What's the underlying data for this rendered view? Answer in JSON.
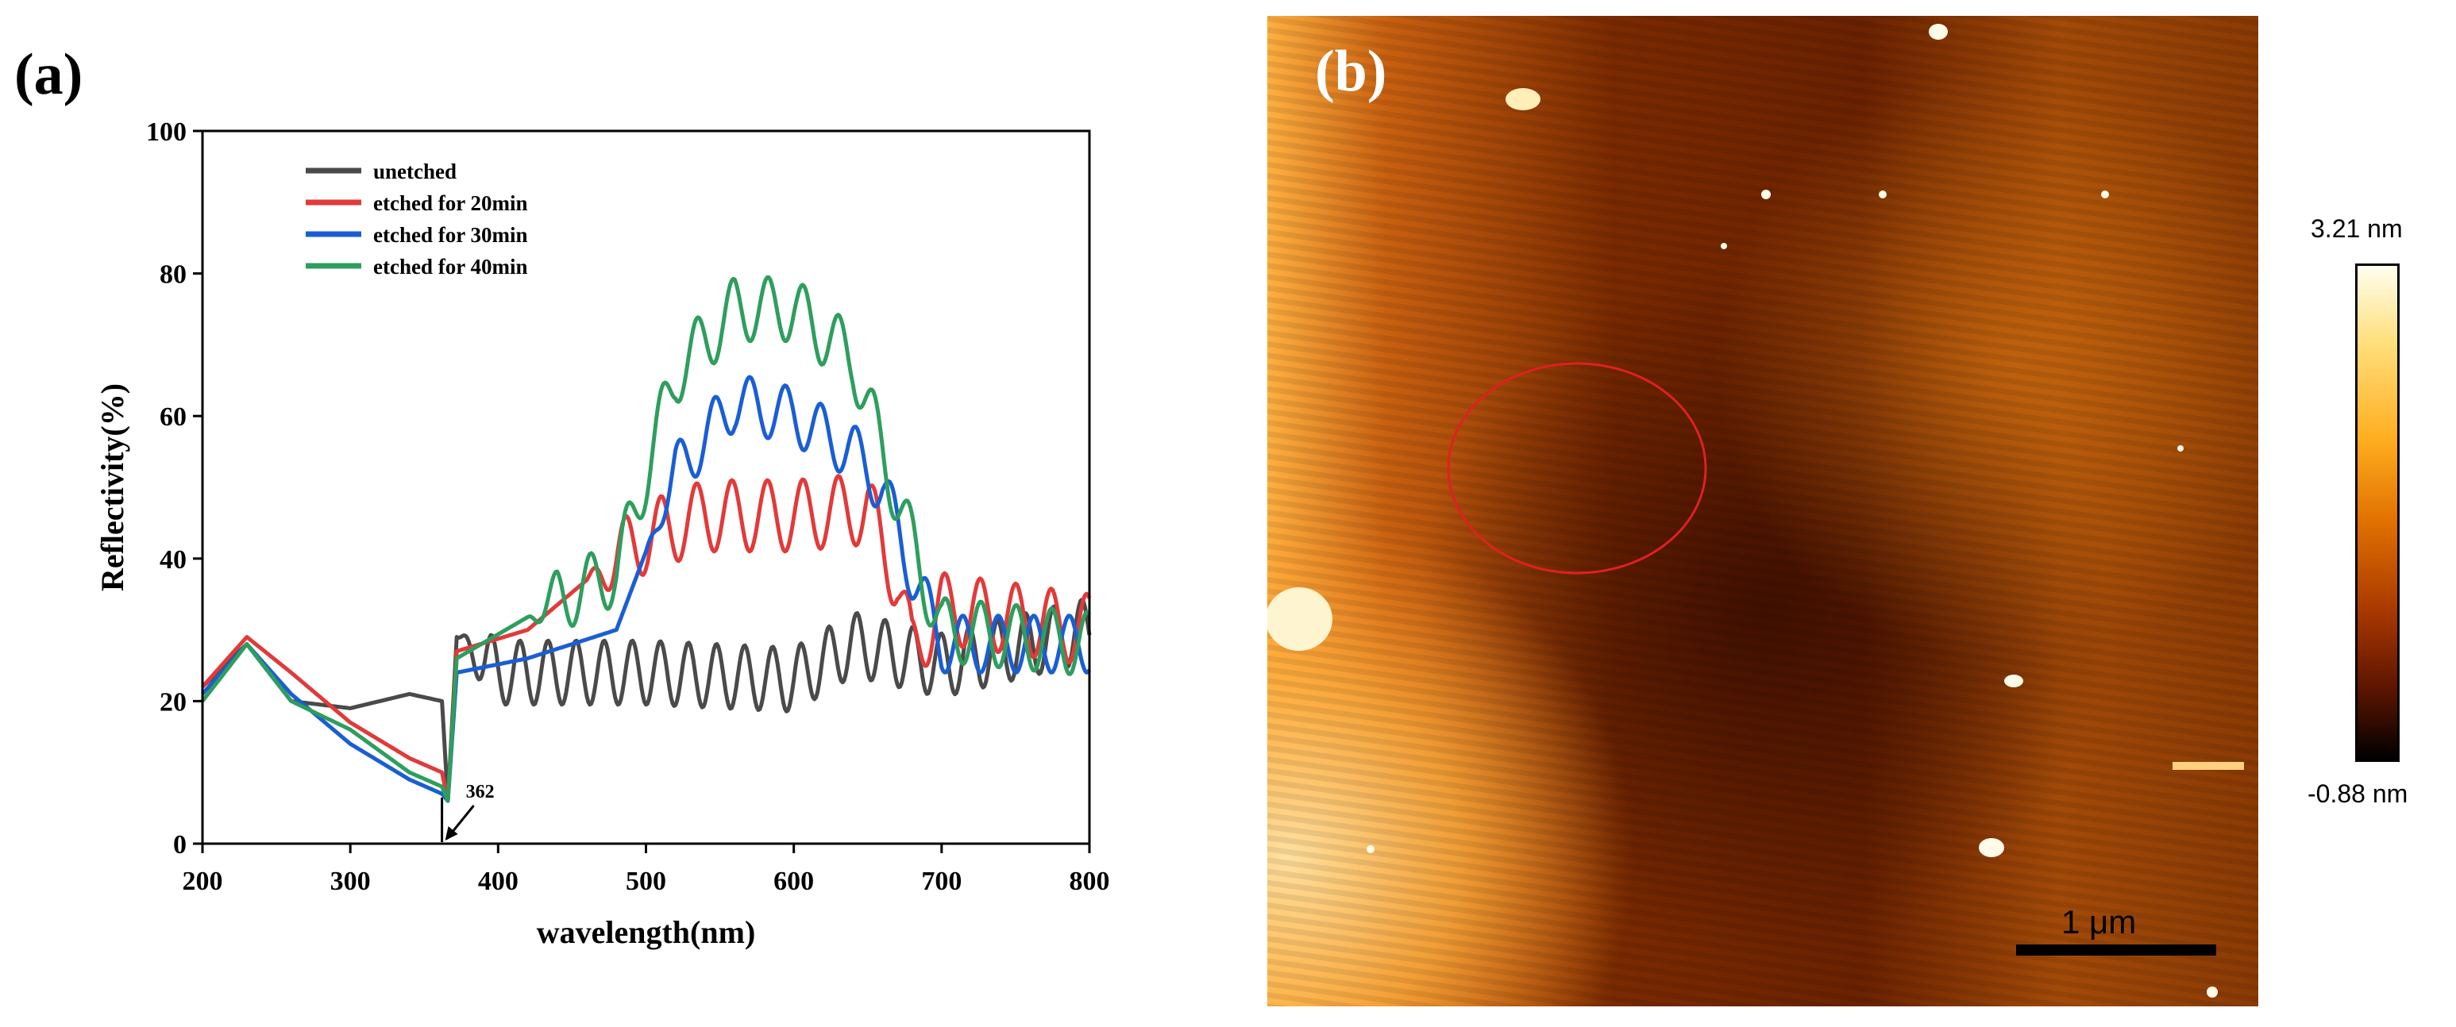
{
  "panel_a": {
    "label": "(a)",
    "chart_data": {
      "type": "line",
      "title": "",
      "xlabel": "wavelength(nm)",
      "ylabel": "Reflectivity(%)",
      "xlim": [
        200,
        800
      ],
      "ylim": [
        0,
        100
      ],
      "xticks": [
        200,
        300,
        400,
        500,
        600,
        700,
        800
      ],
      "yticks": [
        0,
        20,
        40,
        60,
        80,
        100
      ],
      "legend_position": "top-left",
      "annotation": {
        "text": "362",
        "x": 362,
        "y": 0
      },
      "series": [
        {
          "name": "unetched",
          "color": "#4a4a4a",
          "x": [
            200,
            230,
            260,
            300,
            340,
            362,
            366,
            372,
            400,
            500,
            600,
            640,
            700,
            800
          ],
          "y": [
            22,
            28,
            20,
            19,
            21,
            20,
            6,
            29,
            24,
            24,
            23,
            28,
            25,
            30
          ],
          "oscillation": {
            "from": 372,
            "to": 800,
            "amplitude": 4.5,
            "period": 19
          }
        },
        {
          "name": "etched for 20min",
          "color": "#e23a3a",
          "x": [
            200,
            230,
            260,
            300,
            340,
            362,
            366,
            372,
            420,
            460,
            500,
            540,
            600,
            650,
            670,
            680,
            700,
            800
          ],
          "y": [
            22,
            29,
            24,
            17,
            12,
            10,
            6,
            27,
            30,
            37,
            43,
            46,
            46,
            47,
            37,
            27,
            33,
            30
          ],
          "oscillation": {
            "from": 460,
            "to": 800,
            "amplitude": 5,
            "period": 24
          }
        },
        {
          "name": "etched for 30min",
          "color": "#1a5ed4",
          "x": [
            200,
            230,
            260,
            300,
            340,
            362,
            366,
            372,
            420,
            480,
            520,
            560,
            600,
            640,
            660,
            680,
            700,
            800
          ],
          "y": [
            21,
            28,
            21,
            14,
            9,
            7,
            6,
            24,
            26,
            30,
            52,
            62,
            60,
            55,
            50,
            38,
            28,
            28
          ],
          "oscillation": {
            "from": 500,
            "to": 800,
            "amplitude": 4,
            "period": 24
          }
        },
        {
          "name": "etched for 40min",
          "color": "#2e9e5e",
          "x": [
            200,
            230,
            260,
            300,
            340,
            362,
            366,
            372,
            430,
            480,
            520,
            560,
            600,
            640,
            660,
            680,
            700,
            800
          ],
          "y": [
            20,
            28,
            20,
            16,
            10,
            8,
            6,
            26,
            33,
            38,
            66,
            75,
            75,
            68,
            55,
            42,
            30,
            28
          ],
          "oscillation": {
            "from": 420,
            "to": 800,
            "amplitude": 4.5,
            "period": 24
          }
        }
      ]
    }
  },
  "panel_b": {
    "label": "(b)",
    "scale_bar": "1 μm",
    "colorbar": {
      "max_label": "3.21 nm",
      "min_label": "-0.88 nm"
    },
    "highlight_color": "#e02020"
  }
}
